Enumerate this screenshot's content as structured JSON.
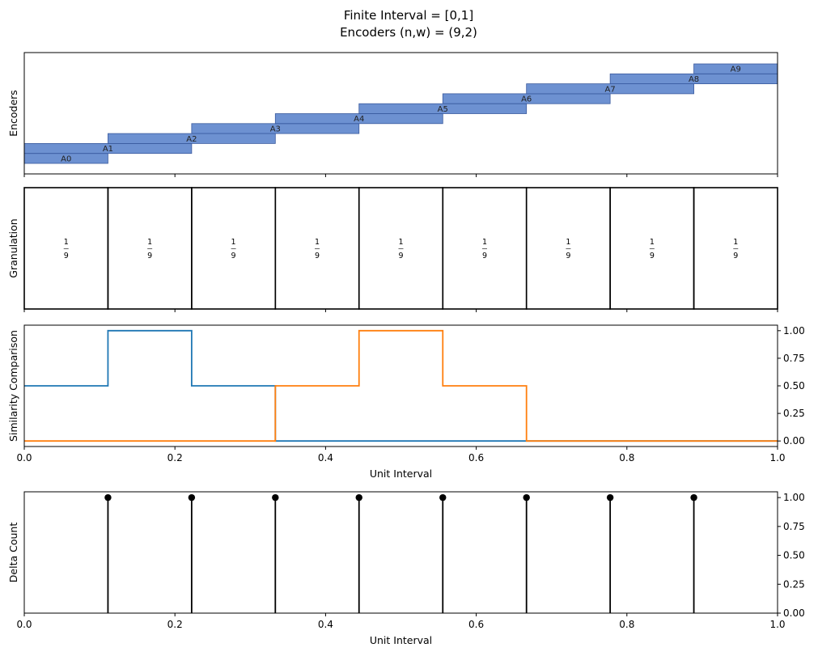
{
  "title": [
    "Finite Interval = [0,1]",
    "Encoders (n,w) = (9,2)"
  ],
  "chart_data": [
    {
      "panel": "encoders",
      "type": "bar",
      "ylabel": "Encoders",
      "xlim": [
        0,
        1
      ],
      "color": "#4472c4",
      "encoders": [
        {
          "label": "A0",
          "x0": 0.0,
          "x1": 0.1111
        },
        {
          "label": "A1",
          "x0": 0.0,
          "x1": 0.2222
        },
        {
          "label": "A2",
          "x0": 0.1111,
          "x1": 0.3333
        },
        {
          "label": "A3",
          "x0": 0.2222,
          "x1": 0.4444
        },
        {
          "label": "A4",
          "x0": 0.3333,
          "x1": 0.5556
        },
        {
          "label": "A5",
          "x0": 0.4444,
          "x1": 0.6667
        },
        {
          "label": "A6",
          "x0": 0.5556,
          "x1": 0.7778
        },
        {
          "label": "A7",
          "x0": 0.6667,
          "x1": 0.8889
        },
        {
          "label": "A8",
          "x0": 0.7778,
          "x1": 1.0
        },
        {
          "label": "A9",
          "x0": 0.8889,
          "x1": 1.0
        }
      ]
    },
    {
      "panel": "granulation",
      "type": "table",
      "ylabel": "Granulation",
      "xlim": [
        0,
        1
      ],
      "boundaries": [
        0,
        0.1111,
        0.2222,
        0.3333,
        0.4444,
        0.5556,
        0.6667,
        0.7778,
        0.8889,
        1.0
      ],
      "cells": [
        {
          "num": "1",
          "den": "9"
        },
        {
          "num": "1",
          "den": "9"
        },
        {
          "num": "1",
          "den": "9"
        },
        {
          "num": "1",
          "den": "9"
        },
        {
          "num": "1",
          "den": "9"
        },
        {
          "num": "1",
          "den": "9"
        },
        {
          "num": "1",
          "den": "9"
        },
        {
          "num": "1",
          "den": "9"
        },
        {
          "num": "1",
          "den": "9"
        }
      ]
    },
    {
      "panel": "similarity",
      "type": "line",
      "ylabel": "Similarity Comparison",
      "xlabel": "Unit Interval",
      "xlim": [
        0,
        1
      ],
      "ylim": [
        -0.05,
        1.05
      ],
      "xticks": [
        "0.0",
        "0.2",
        "0.4",
        "0.6",
        "0.8",
        "1.0"
      ],
      "yticks": [
        "0.00",
        "0.25",
        "0.50",
        "0.75",
        "1.00"
      ],
      "series": [
        {
          "color": "#1f77b4",
          "x": [
            0,
            0.1111,
            0.1111,
            0.2222,
            0.2222,
            0.3333,
            0.3333,
            1.0
          ],
          "y": [
            0.5,
            0.5,
            1.0,
            1.0,
            0.5,
            0.5,
            0.0,
            0.0
          ]
        },
        {
          "color": "#ff7f0e",
          "x": [
            0,
            0.3333,
            0.3333,
            0.4444,
            0.4444,
            0.5556,
            0.5556,
            0.6667,
            0.6667,
            1.0
          ],
          "y": [
            0.0,
            0.0,
            0.5,
            0.5,
            1.0,
            1.0,
            0.5,
            0.5,
            0.0,
            0.0
          ]
        }
      ]
    },
    {
      "panel": "delta",
      "type": "scatter",
      "ylabel": "Delta Count",
      "xlabel": "Unit Interval",
      "xlim": [
        0,
        1
      ],
      "ylim": [
        0,
        1.05
      ],
      "xticks": [
        "0.0",
        "0.2",
        "0.4",
        "0.6",
        "0.8",
        "1.0"
      ],
      "yticks": [
        "0.00",
        "0.25",
        "0.50",
        "0.75",
        "1.00"
      ],
      "x": [
        0.1111,
        0.2222,
        0.3333,
        0.4444,
        0.5556,
        0.6667,
        0.7778,
        0.8889
      ],
      "y": [
        1,
        1,
        1,
        1,
        1,
        1,
        1,
        1
      ],
      "color": "#000000"
    }
  ]
}
